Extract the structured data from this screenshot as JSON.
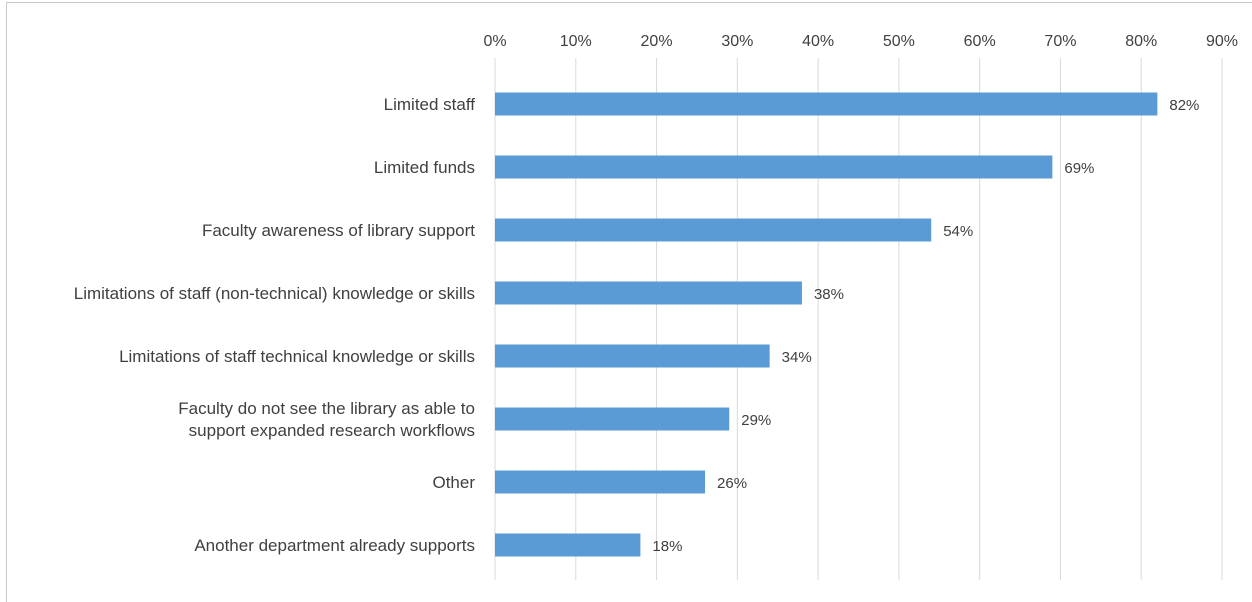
{
  "chart_data": {
    "type": "bar",
    "orientation": "horizontal",
    "title": "",
    "xlabel": "",
    "ylabel": "",
    "xlim": [
      0,
      90
    ],
    "x_ticks": [
      "0%",
      "10%",
      "20%",
      "30%",
      "40%",
      "50%",
      "60%",
      "70%",
      "80%",
      "90%"
    ],
    "x_axis_position": "top",
    "grid": "vertical",
    "legend": "none",
    "bar_color": "#5b9bd5",
    "categories": [
      [
        "Limited staff"
      ],
      [
        "Limited funds"
      ],
      [
        "Faculty awareness of library support"
      ],
      [
        "Limitations of staff (non-technical) knowledge or skills"
      ],
      [
        "Limitations of staff technical knowledge or skills"
      ],
      [
        "Faculty do not see the library as able to",
        "support expanded research workflows"
      ],
      [
        "Other"
      ],
      [
        "Another department already supports"
      ]
    ],
    "values": [
      82,
      69,
      54,
      38,
      34,
      29,
      26,
      18
    ],
    "data_labels": [
      "82%",
      "69%",
      "54%",
      "38%",
      "34%",
      "29%",
      "26%",
      "18%"
    ]
  }
}
